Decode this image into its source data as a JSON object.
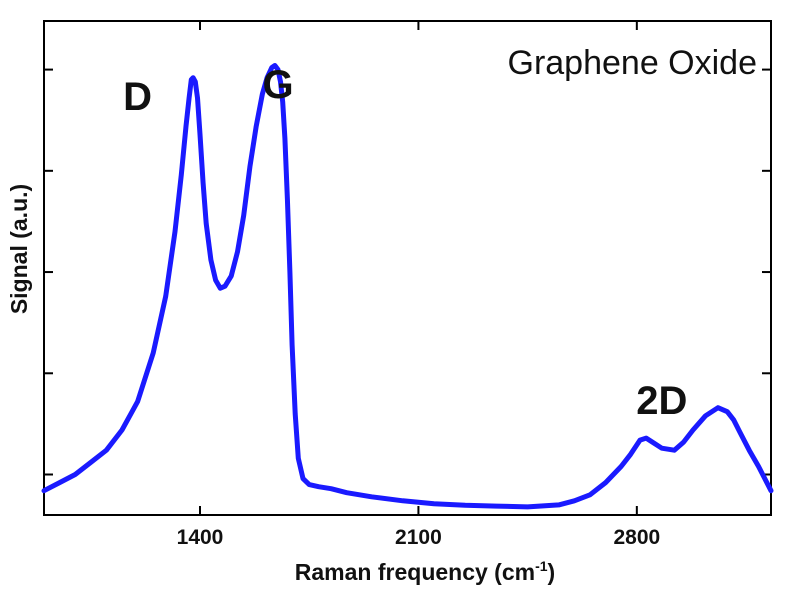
{
  "chart_data": {
    "type": "line",
    "title": "Graphene Oxide",
    "xlabel": "Raman frequency (cm",
    "xlabel_sup": "-1",
    "xlabel_end": ")",
    "ylabel": "Signal (a.u.)",
    "xlim": [
      900,
      3230
    ],
    "ylim": [
      0,
      1.22
    ],
    "x_ticks": [
      1400,
      2100,
      2800
    ],
    "y_ticks_minor": [
      0.1,
      0.35,
      0.6,
      0.85,
      1.1
    ],
    "grid": false,
    "legend": "none",
    "line_color": "#1a1aff",
    "peak_labels": [
      {
        "text": "D",
        "x": 1200,
        "y": 1.0
      },
      {
        "text": "G",
        "x": 1650,
        "y": 1.03
      },
      {
        "text": "2D",
        "x": 2880,
        "y": 0.25
      }
    ],
    "series": [
      {
        "x": [
          900,
          950,
          1000,
          1050,
          1100,
          1150,
          1200,
          1250,
          1290,
          1320,
          1340,
          1355,
          1365,
          1372,
          1378,
          1385,
          1392,
          1400,
          1410,
          1420,
          1435,
          1450,
          1465,
          1480,
          1500,
          1520,
          1540,
          1560,
          1580,
          1600,
          1615,
          1630,
          1640,
          1650,
          1658,
          1665,
          1672,
          1680,
          1688,
          1695,
          1705,
          1715,
          1730,
          1750,
          1780,
          1820,
          1870,
          1950,
          2050,
          2150,
          2250,
          2350,
          2450,
          2550,
          2600,
          2650,
          2700,
          2750,
          2780,
          2810,
          2830,
          2850,
          2880,
          2920,
          2950,
          2980,
          3020,
          3060,
          3090,
          3110,
          3130,
          3160,
          3190,
          3210,
          3230
        ],
        "values": [
          0.06,
          0.08,
          0.1,
          0.13,
          0.16,
          0.21,
          0.28,
          0.4,
          0.54,
          0.7,
          0.84,
          0.96,
          1.03,
          1.075,
          1.08,
          1.07,
          1.03,
          0.94,
          0.82,
          0.72,
          0.63,
          0.58,
          0.56,
          0.565,
          0.59,
          0.65,
          0.74,
          0.86,
          0.96,
          1.04,
          1.08,
          1.105,
          1.11,
          1.1,
          1.07,
          1.02,
          0.93,
          0.78,
          0.6,
          0.42,
          0.25,
          0.14,
          0.09,
          0.075,
          0.07,
          0.065,
          0.055,
          0.045,
          0.035,
          0.028,
          0.024,
          0.022,
          0.02,
          0.025,
          0.035,
          0.05,
          0.08,
          0.12,
          0.15,
          0.185,
          0.19,
          0.18,
          0.165,
          0.16,
          0.18,
          0.21,
          0.245,
          0.265,
          0.255,
          0.235,
          0.205,
          0.16,
          0.12,
          0.09,
          0.06
        ]
      }
    ]
  }
}
